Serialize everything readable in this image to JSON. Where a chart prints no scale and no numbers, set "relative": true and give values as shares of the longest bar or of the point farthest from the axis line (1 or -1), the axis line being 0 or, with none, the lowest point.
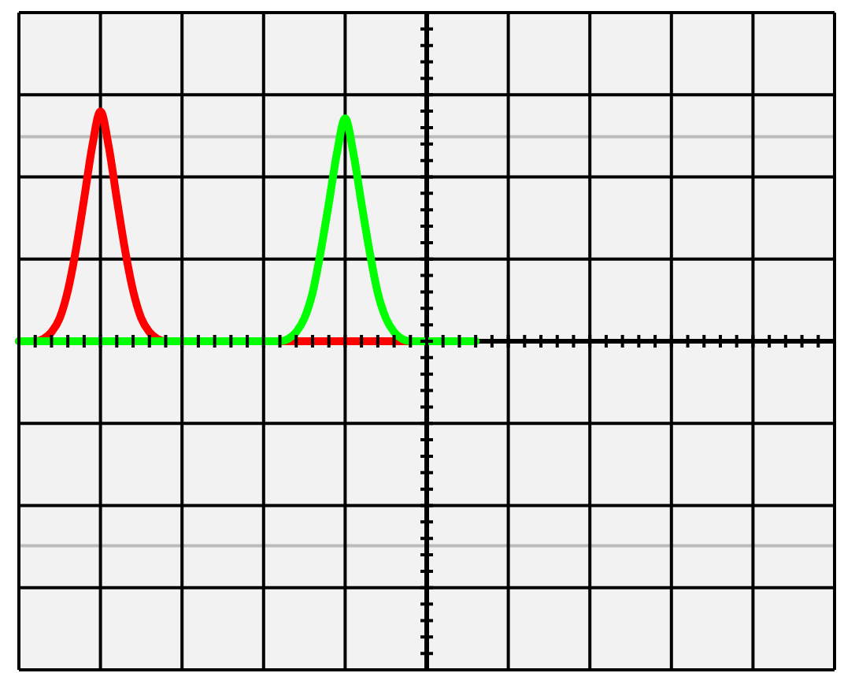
{
  "chart_data": {
    "type": "line",
    "relative": true,
    "grid": true,
    "marker": "none",
    "line_style": "solid",
    "categories": [
      null,
      null,
      null,
      null,
      null,
      null,
      null,
      null,
      null,
      null,
      null,
      null,
      null,
      null,
      null,
      null,
      null,
      null,
      null,
      null,
      null,
      null,
      null,
      null,
      null,
      null,
      null,
      null,
      null,
      null,
      null,
      null,
      null,
      null,
      null,
      null,
      null,
      null,
      null,
      null,
      null,
      null,
      null,
      null,
      null,
      null,
      null,
      null,
      null,
      null,
      null,
      null,
      null,
      null,
      null,
      null,
      null,
      null,
      null,
      null,
      null,
      null,
      null,
      null,
      null,
      null,
      null,
      null,
      null,
      null,
      null,
      null,
      null,
      null,
      null,
      null,
      null,
      null,
      null,
      null,
      null,
      null,
      null,
      null,
      null,
      null,
      null,
      null,
      null,
      null,
      null,
      null,
      null,
      null,
      null,
      null,
      null,
      null,
      null,
      null,
      null
    ],
    "series": [
      {
        "color": "#ff0000",
        "values": [
          0,
          0,
          0,
          0.01,
          0.04,
          0.1,
          0.22,
          0.4,
          0.62,
          0.85,
          1,
          0.85,
          0.62,
          0.4,
          0.22,
          0.1,
          0.04,
          0.01,
          0,
          0,
          0,
          0,
          0,
          0,
          0,
          0,
          0,
          0,
          0,
          0,
          0,
          0,
          0,
          0,
          0,
          0,
          0,
          0,
          0,
          0,
          0,
          0,
          0,
          0,
          0,
          0,
          0,
          0,
          0,
          null,
          null,
          null,
          null,
          null,
          null,
          null,
          null,
          null,
          null,
          null,
          null,
          null,
          null,
          null,
          null,
          null,
          null,
          null,
          null,
          null,
          null,
          null,
          null,
          null,
          null,
          null,
          null,
          null,
          null,
          null,
          null,
          null,
          null,
          null,
          null,
          null,
          null,
          null,
          null,
          null,
          null,
          null,
          null,
          null,
          null,
          null,
          null,
          null,
          null,
          null,
          null
        ]
      },
      {
        "color": "#00ff00",
        "values": [
          0,
          0,
          0,
          0,
          0,
          0,
          0,
          0,
          0,
          0,
          0,
          0,
          0,
          0,
          0,
          0,
          0,
          0,
          0,
          0,
          0,
          0,
          0,
          0,
          0,
          0,
          0,
          0,
          0,
          0,
          0,
          0,
          0,
          0.01,
          0.04,
          0.1,
          0.21,
          0.39,
          0.6,
          0.82,
          0.97,
          0.82,
          0.6,
          0.39,
          0.21,
          0.1,
          0.04,
          0.01,
          0,
          0,
          0,
          0,
          0,
          0,
          0,
          0,
          0,
          null,
          null,
          null,
          null,
          null,
          null,
          null,
          null,
          null,
          null,
          null,
          null,
          null,
          null,
          null,
          null,
          null,
          null,
          null,
          null,
          null,
          null,
          null,
          null,
          null,
          null,
          null,
          null,
          null,
          null,
          null,
          null,
          null,
          null,
          null,
          null,
          null,
          null,
          null,
          null,
          null,
          null,
          null,
          null
        ]
      }
    ],
    "ref_lines": [
      {
        "axis": "y",
        "value": 0.89,
        "color": "#bbbbbb"
      },
      {
        "axis": "y",
        "value": -0.89,
        "color": "#bbbbbb"
      }
    ],
    "legend": false
  }
}
